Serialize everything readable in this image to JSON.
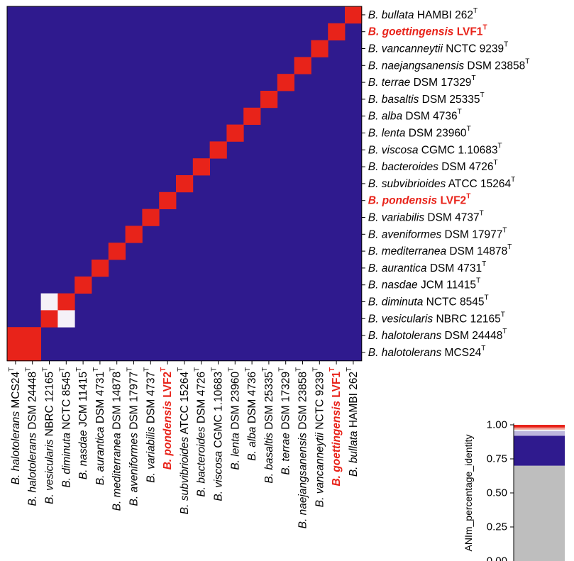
{
  "chart_data": [
    {
      "type": "heatmap",
      "title": "",
      "row_labels": [
        {
          "genus": "B.",
          "species": "bullata",
          "strain": "HAMBI 262",
          "sup": "T",
          "highlight": false
        },
        {
          "genus": "B.",
          "species": "goettingensis",
          "strain": "LVF1",
          "sup": "T",
          "highlight": true
        },
        {
          "genus": "B.",
          "species": "vancanneytii",
          "strain": "NCTC 9239",
          "sup": "T",
          "highlight": false
        },
        {
          "genus": "B.",
          "species": "naejangsanensis",
          "strain": "DSM 23858",
          "sup": "T",
          "highlight": false
        },
        {
          "genus": "B.",
          "species": "terrae",
          "strain": "DSM 17329",
          "sup": "T",
          "highlight": false
        },
        {
          "genus": "B.",
          "species": "basaltis",
          "strain": "DSM 25335",
          "sup": "T",
          "highlight": false
        },
        {
          "genus": "B.",
          "species": "alba",
          "strain": "DSM 4736",
          "sup": "T",
          "highlight": false
        },
        {
          "genus": "B.",
          "species": "lenta",
          "strain": "DSM 23960",
          "sup": "T",
          "highlight": false
        },
        {
          "genus": "B.",
          "species": "viscosa",
          "strain": "CGMC 1.10683",
          "sup": "T",
          "highlight": false
        },
        {
          "genus": "B.",
          "species": "bacteroides",
          "strain": "DSM 4726",
          "sup": "T",
          "highlight": false
        },
        {
          "genus": "B.",
          "species": "subvibrioides",
          "strain": "ATCC 15264",
          "sup": "T",
          "highlight": false
        },
        {
          "genus": "B.",
          "species": "pondensis",
          "strain": "LVF2",
          "sup": "T",
          "highlight": true
        },
        {
          "genus": "B.",
          "species": "variabilis",
          "strain": "DSM 4737",
          "sup": "T",
          "highlight": false
        },
        {
          "genus": "B.",
          "species": "aveniformes",
          "strain": "DSM 17977",
          "sup": "T",
          "highlight": false
        },
        {
          "genus": "B.",
          "species": "mediterranea",
          "strain": "DSM 14878",
          "sup": "T",
          "highlight": false
        },
        {
          "genus": "B.",
          "species": "aurantica",
          "strain": "DSM 4731",
          "sup": "T",
          "highlight": false
        },
        {
          "genus": "B.",
          "species": "nasdae",
          "strain": "JCM 11415",
          "sup": "T",
          "highlight": false
        },
        {
          "genus": "B.",
          "species": "diminuta",
          "strain": "NCTC 8545",
          "sup": "T",
          "highlight": false
        },
        {
          "genus": "B.",
          "species": "vesicularis",
          "strain": "NBRC 12165",
          "sup": "T",
          "highlight": false
        },
        {
          "genus": "B.",
          "species": "halotolerans",
          "strain": "DSM 24448",
          "sup": "T",
          "highlight": false
        },
        {
          "genus": "B.",
          "species": "halotolerans",
          "strain": "MCS24",
          "sup": "T",
          "highlight": false
        }
      ],
      "col_labels": [
        {
          "genus": "B.",
          "species": "halotolerans",
          "strain": "MCS24",
          "sup": "T",
          "highlight": false
        },
        {
          "genus": "B.",
          "species": "halotolerans",
          "strain": "DSM 24448",
          "sup": "T",
          "highlight": false
        },
        {
          "genus": "B.",
          "species": "vesicularis",
          "strain": "NBRC 12165",
          "sup": "T",
          "highlight": false
        },
        {
          "genus": "B.",
          "species": "diminuta",
          "strain": "NCTC 8545",
          "sup": "T",
          "highlight": false
        },
        {
          "genus": "B.",
          "species": "nasdae",
          "strain": "JCM 11415",
          "sup": "T",
          "highlight": false
        },
        {
          "genus": "B.",
          "species": "aurantica",
          "strain": "DSM 4731",
          "sup": "T",
          "highlight": false
        },
        {
          "genus": "B.",
          "species": "mediterranea",
          "strain": "DSM 14878",
          "sup": "T",
          "highlight": false
        },
        {
          "genus": "B.",
          "species": "aveniformes",
          "strain": "DSM 17977",
          "sup": "T",
          "highlight": false
        },
        {
          "genus": "B.",
          "species": "variabilis",
          "strain": "DSM 4737",
          "sup": "T",
          "highlight": false
        },
        {
          "genus": "B.",
          "species": "pondensis",
          "strain": "LVF2",
          "sup": "T",
          "highlight": true
        },
        {
          "genus": "B.",
          "species": "subvibrioides",
          "strain": "ATCC 15264",
          "sup": "T",
          "highlight": false
        },
        {
          "genus": "B.",
          "species": "bacteroides",
          "strain": "DSM 4726",
          "sup": "T",
          "highlight": false
        },
        {
          "genus": "B.",
          "species": "viscosa",
          "strain": "CGMC 1.10683",
          "sup": "T",
          "highlight": false
        },
        {
          "genus": "B.",
          "species": "lenta",
          "strain": "DSM 23960",
          "sup": "T",
          "highlight": false
        },
        {
          "genus": "B.",
          "species": "alba",
          "strain": "DSM 4736",
          "sup": "T",
          "highlight": false
        },
        {
          "genus": "B.",
          "species": "basaltis",
          "strain": "DSM 25335",
          "sup": "T",
          "highlight": false
        },
        {
          "genus": "B.",
          "species": "terrae",
          "strain": "DSM 17329",
          "sup": "T",
          "highlight": false
        },
        {
          "genus": "B.",
          "species": "naejangsanensis",
          "strain": "DSM 23858",
          "sup": "T",
          "highlight": false
        },
        {
          "genus": "B.",
          "species": "vancanneytii",
          "strain": "NCTC 9239",
          "sup": "T",
          "highlight": false
        },
        {
          "genus": "B.",
          "species": "goettingensis",
          "strain": "LVF1",
          "sup": "T",
          "highlight": true
        },
        {
          "genus": "B.",
          "species": "bullata",
          "strain": "HAMBI 262",
          "sup": "T",
          "highlight": false
        }
      ],
      "default_value": 0.8,
      "cells": [
        {
          "row": 0,
          "col": 20,
          "value": 1.0
        },
        {
          "row": 1,
          "col": 19,
          "value": 1.0
        },
        {
          "row": 2,
          "col": 18,
          "value": 1.0
        },
        {
          "row": 3,
          "col": 17,
          "value": 1.0
        },
        {
          "row": 4,
          "col": 16,
          "value": 1.0
        },
        {
          "row": 5,
          "col": 15,
          "value": 1.0
        },
        {
          "row": 6,
          "col": 14,
          "value": 1.0
        },
        {
          "row": 7,
          "col": 13,
          "value": 1.0
        },
        {
          "row": 8,
          "col": 12,
          "value": 1.0
        },
        {
          "row": 9,
          "col": 11,
          "value": 1.0
        },
        {
          "row": 10,
          "col": 10,
          "value": 1.0
        },
        {
          "row": 11,
          "col": 9,
          "value": 1.0
        },
        {
          "row": 12,
          "col": 8,
          "value": 1.0
        },
        {
          "row": 13,
          "col": 7,
          "value": 1.0
        },
        {
          "row": 14,
          "col": 6,
          "value": 1.0
        },
        {
          "row": 15,
          "col": 5,
          "value": 1.0
        },
        {
          "row": 16,
          "col": 4,
          "value": 1.0
        },
        {
          "row": 17,
          "col": 3,
          "value": 1.0
        },
        {
          "row": 17,
          "col": 2,
          "value": 0.95
        },
        {
          "row": 18,
          "col": 3,
          "value": 0.95
        },
        {
          "row": 18,
          "col": 2,
          "value": 1.0
        },
        {
          "row": 19,
          "col": 1,
          "value": 1.0
        },
        {
          "row": 19,
          "col": 0,
          "value": 1.0
        },
        {
          "row": 20,
          "col": 1,
          "value": 1.0
        },
        {
          "row": 20,
          "col": 0,
          "value": 1.0
        }
      ]
    },
    {
      "type": "colorbar",
      "ylabel": "ANIm_percentage_identity",
      "ylim": [
        0.0,
        1.0
      ],
      "ticks": [
        1.0,
        0.75,
        0.5,
        0.25,
        0.0
      ],
      "tick_labels": [
        "1.00",
        "0.75",
        "0.50",
        "0.25",
        "0.00"
      ],
      "stops": [
        {
          "from": 0.0,
          "to": 0.7,
          "color": "#bebebe"
        },
        {
          "from": 0.7,
          "to": 0.92,
          "color": "#2f1a8e"
        },
        {
          "from": 0.92,
          "to": 0.955,
          "color": "#bdb6dd"
        },
        {
          "from": 0.955,
          "to": 0.965,
          "color": "#f5f5f5"
        },
        {
          "from": 0.965,
          "to": 0.98,
          "color": "#ef9a8f"
        },
        {
          "from": 0.98,
          "to": 1.0,
          "color": "#e8231a"
        }
      ]
    }
  ],
  "colors": {
    "low": "#2f1a8e",
    "high": "#e8231a",
    "mid": "#f5f1f8",
    "below": "#bebebe",
    "highlight_text": "#e8231a",
    "text": "#000000"
  }
}
